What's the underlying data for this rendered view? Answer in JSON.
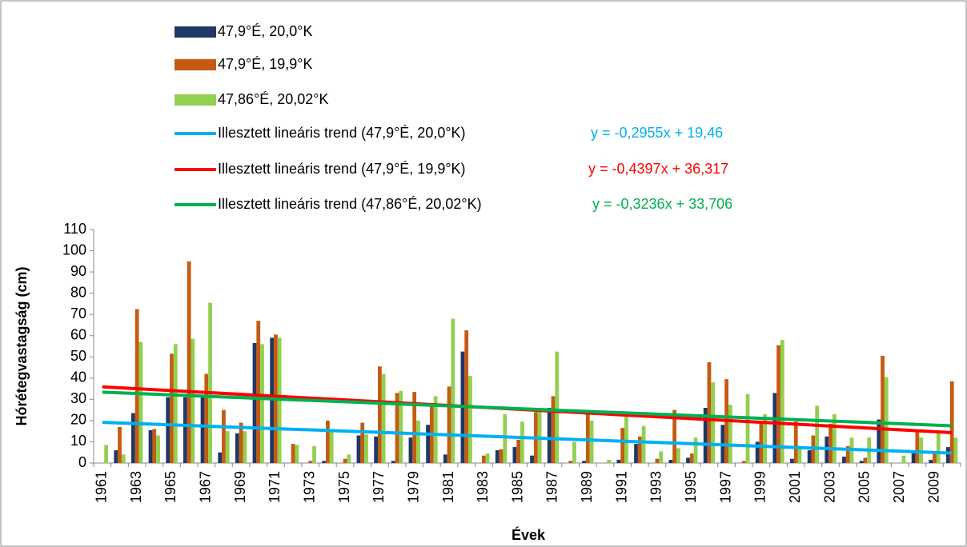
{
  "chart_data": {
    "type": "bar",
    "categories": [
      "1961",
      null,
      "1963",
      null,
      "1965",
      null,
      "1967",
      null,
      "1969",
      null,
      "1971",
      null,
      "1973",
      null,
      "1975",
      null,
      "1977",
      null,
      "1979",
      null,
      "1981",
      null,
      "1983",
      null,
      "1985",
      null,
      "1987",
      null,
      "1989",
      null,
      "1991",
      null,
      "1993",
      null,
      "1995",
      null,
      "1997",
      null,
      "1999",
      null,
      "2001",
      null,
      "2003",
      null,
      "2005",
      null,
      "2007",
      null,
      "2009",
      null
    ],
    "series": [
      {
        "name": "47,9°É, 20,0°K",
        "color": "#1f3864",
        "values": [
          0,
          6,
          23.5,
          15.5,
          31,
          31,
          32,
          5,
          14,
          56.5,
          59,
          0,
          0,
          1,
          0,
          13,
          12.5,
          1,
          12,
          18,
          4,
          52.5,
          0,
          6,
          7.5,
          3.5,
          26,
          0,
          1,
          0,
          1.5,
          9,
          0,
          1.5,
          2.5,
          26,
          18,
          0,
          10,
          33,
          2,
          6,
          12.5,
          3,
          1,
          20.5,
          0,
          5.5,
          1.5,
          7.5
        ]
      },
      {
        "name": "47,9°É, 19,9°K",
        "color": "#c55a11",
        "values": [
          0,
          17,
          72.5,
          16,
          51.5,
          95,
          42,
          25,
          19,
          67,
          60.5,
          9,
          1,
          20,
          2,
          19,
          45.5,
          33,
          33.5,
          27,
          36,
          62.5,
          3.5,
          6.5,
          11,
          24,
          31.5,
          1,
          24,
          0,
          16.5,
          12.5,
          2,
          25,
          4.5,
          47.5,
          39.5,
          1,
          20,
          55.5,
          19.5,
          13,
          18.5,
          8,
          2.5,
          50.5,
          0,
          15,
          5.5,
          38.5
        ]
      },
      {
        "name": "47,86°É, 20,02°K",
        "color": "#92d050",
        "values": [
          8.5,
          4,
          57,
          13,
          56,
          58.5,
          75.5,
          15,
          15,
          56,
          59,
          8.5,
          8,
          15,
          4,
          13.5,
          42,
          34,
          20,
          31.5,
          68,
          41,
          4.5,
          23,
          19.5,
          26,
          52.5,
          10,
          20,
          1.5,
          22,
          17.5,
          5.5,
          7,
          12,
          38,
          27.5,
          32.5,
          23,
          58,
          7,
          27,
          23,
          12,
          12,
          40.5,
          3.5,
          12,
          14.5,
          12
        ]
      }
    ],
    "trendlines": [
      {
        "name": "Illesztett lineáris trend (47,9°É, 20,0°K)",
        "color": "#00b0f0",
        "equation": "y = -0,2955x + 19,46",
        "slope": -0.2955,
        "intercept": 19.46
      },
      {
        "name": "Illesztett lineáris trend (47,9°É, 19,9°K)",
        "color": "#ff0000",
        "equation": "y = -0,4397x + 36,317",
        "slope": -0.4397,
        "intercept": 36.317
      },
      {
        "name": "Illesztett lineáris trend (47,86°É, 20,02°K)",
        "color": "#00b050",
        "equation": "y = -0,3236x + 33,706",
        "slope": -0.3236,
        "intercept": 33.706
      }
    ],
    "ylabel": "Hórétegvastagság (cm)",
    "xlabel": "Évek",
    "ylim": [
      0,
      110
    ],
    "yticks": [
      0,
      10,
      20,
      30,
      40,
      50,
      60,
      70,
      80,
      90,
      100,
      110
    ]
  }
}
